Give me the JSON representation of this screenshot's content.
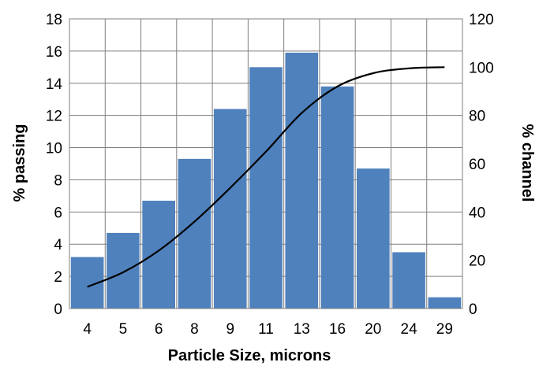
{
  "chart_data": {
    "type": "bar",
    "title": "",
    "xlabel": "Particle Size, microns",
    "ylabel": "% passing",
    "y2label": "% channel",
    "categories": [
      "4",
      "5",
      "6",
      "8",
      "9",
      "11",
      "13",
      "16",
      "20",
      "24",
      "29"
    ],
    "ylim": [
      0,
      18
    ],
    "yticks": [
      "0",
      "2",
      "4",
      "6",
      "8",
      "10",
      "12",
      "14",
      "16",
      "18"
    ],
    "y2lim": [
      0,
      120
    ],
    "y2ticks": [
      "0",
      "20",
      "40",
      "60",
      "80",
      "100",
      "120"
    ],
    "grid": true,
    "legend": "none",
    "series": [
      {
        "type": "bar",
        "axis": "left",
        "color": "#4f81bd",
        "values": [
          3.2,
          4.7,
          6.7,
          9.3,
          12.4,
          15.0,
          15.9,
          13.8,
          8.7,
          3.5,
          0.7
        ]
      },
      {
        "type": "line",
        "axis": "right",
        "color": "#000000",
        "values": [
          9,
          15,
          24,
          36,
          50,
          65,
          81,
          92,
          97.5,
          99.5,
          100
        ]
      }
    ]
  }
}
